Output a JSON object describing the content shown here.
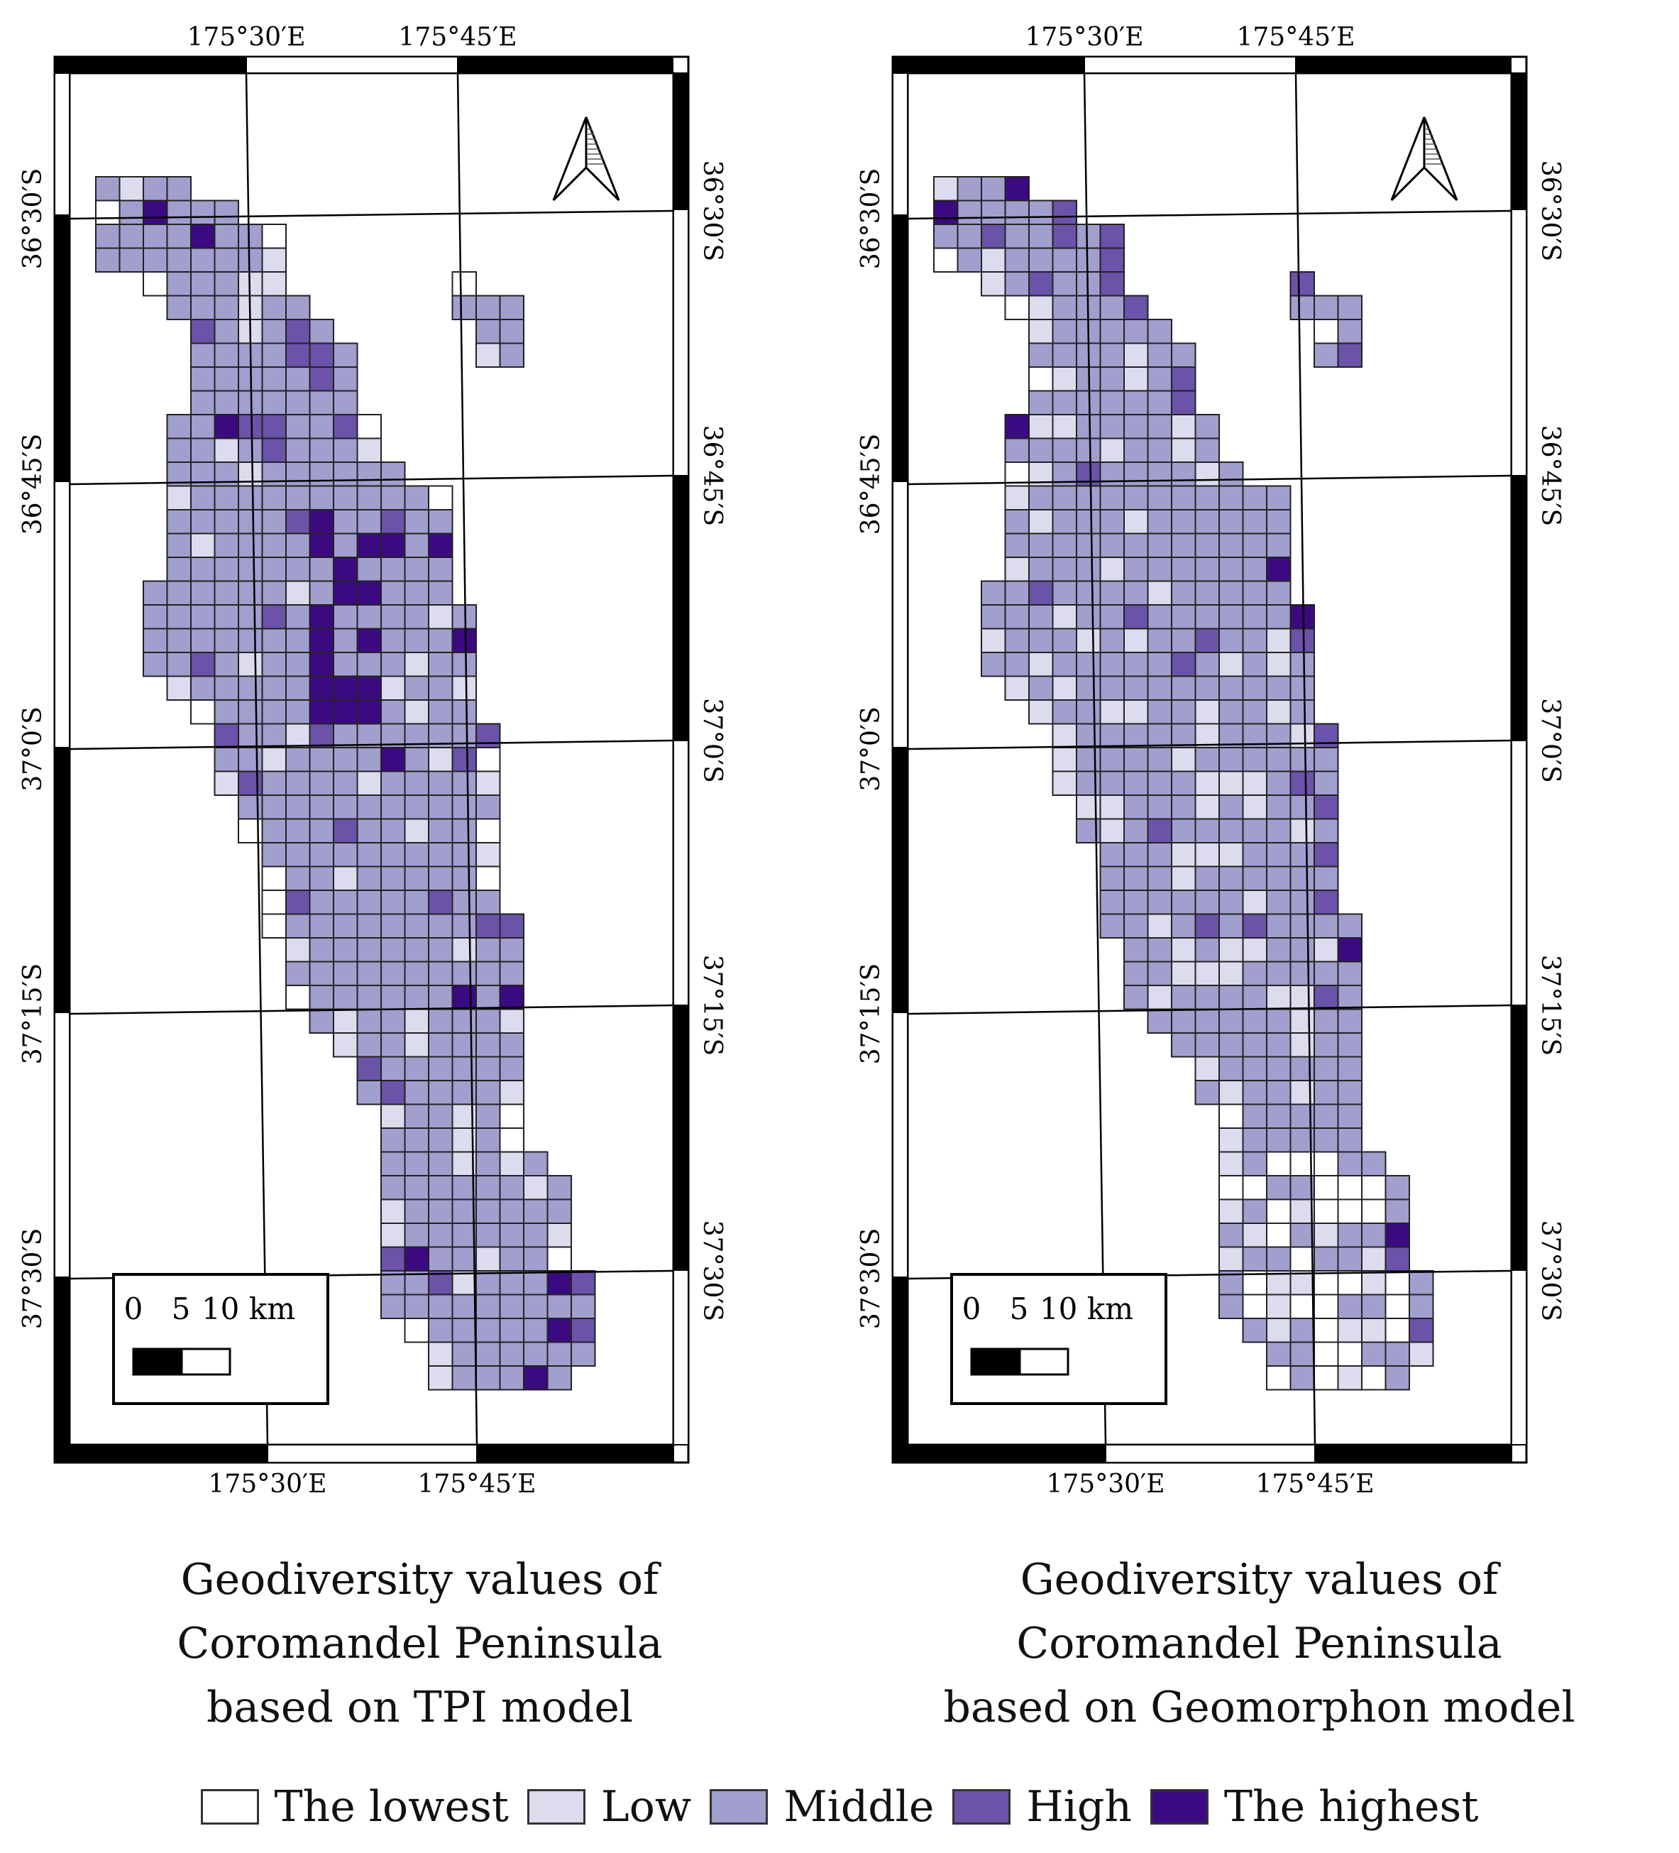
{
  "colors": {
    "lowest": "#ffffff",
    "low": "#dcdcee",
    "middle": "#a19fce",
    "high": "#6a53a8",
    "highest": "#3c0a80"
  },
  "maps": [
    {
      "id": "tpi",
      "caption_lines": [
        "Geodiversity values of",
        "Coromandel Peninsula",
        "based on TPI model"
      ],
      "graticule": {
        "top_lon_labels": [
          "175°30′E",
          "175°45′E"
        ],
        "bottom_lon_labels": [
          "175°30′E",
          "175°45′E"
        ],
        "lat_labels": [
          "36°30′S",
          "36°45′S",
          "37°0′S",
          "37°15′S",
          "37°30′S"
        ]
      },
      "scale_bar": {
        "ticks": [
          "0",
          "5",
          "10 km"
        ]
      },
      "north_arrow": "north-arrow-icon"
    },
    {
      "id": "geomorphon",
      "caption_lines": [
        "Geodiversity values of",
        "Coromandel Peninsula",
        "based on Geomorphon model"
      ],
      "graticule": {
        "top_lon_labels": [
          "175°30′E",
          "175°45′E"
        ],
        "bottom_lon_labels": [
          "175°30′E",
          "175°45′E"
        ],
        "lat_labels": [
          "36°30′S",
          "36°45′S",
          "37°0′S",
          "37°15′S",
          "37°30′S"
        ]
      },
      "scale_bar": {
        "ticks": [
          "0",
          "5",
          "10 km"
        ]
      },
      "north_arrow": "north-arrow-icon"
    }
  ],
  "legend": [
    {
      "key": "lowest",
      "label": "The lowest"
    },
    {
      "key": "low",
      "label": "Low"
    },
    {
      "key": "middle",
      "label": "Middle"
    },
    {
      "key": "high",
      "label": "High"
    },
    {
      "key": "highest",
      "label": "The highest"
    }
  ]
}
